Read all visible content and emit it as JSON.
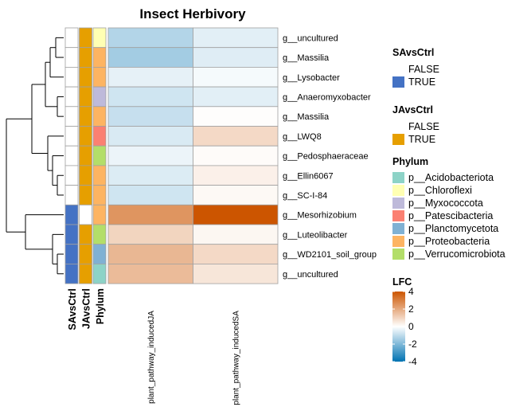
{
  "chart_data": {
    "type": "heatmap",
    "title": "Insect Herbivory",
    "columns": [
      "plant_pathway_inducedJA",
      "plant_pathway_inducedSA"
    ],
    "rows": [
      {
        "label": "g__uncultured",
        "values": [
          -1.2,
          -0.45
        ],
        "SAvsCtrl": "FALSE",
        "JAvsCtrl": "TRUE",
        "Phylum": "p__Chloroflexi"
      },
      {
        "label": "g__Massilia",
        "values": [
          -1.45,
          -0.5
        ],
        "SAvsCtrl": "FALSE",
        "JAvsCtrl": "TRUE",
        "Phylum": "p__Proteobacteria"
      },
      {
        "label": "g__Lysobacter",
        "values": [
          -0.4,
          -0.15
        ],
        "SAvsCtrl": "FALSE",
        "JAvsCtrl": "TRUE",
        "Phylum": "p__Proteobacteria"
      },
      {
        "label": "g__Anaeromyxobacter",
        "values": [
          -0.75,
          -0.45
        ],
        "SAvsCtrl": "FALSE",
        "JAvsCtrl": "TRUE",
        "Phylum": "p__Myxococcota"
      },
      {
        "label": "g__Massilia",
        "values": [
          -0.9,
          0.05
        ],
        "SAvsCtrl": "FALSE",
        "JAvsCtrl": "TRUE",
        "Phylum": "p__Proteobacteria"
      },
      {
        "label": "g__LWQ8",
        "values": [
          -0.6,
          0.9
        ],
        "SAvsCtrl": "FALSE",
        "JAvsCtrl": "TRUE",
        "Phylum": "p__Patescibacteria"
      },
      {
        "label": "g__Pedosphaeraceae",
        "values": [
          -0.3,
          0.1
        ],
        "SAvsCtrl": "FALSE",
        "JAvsCtrl": "TRUE",
        "Phylum": "p__Verrucomicrobiota"
      },
      {
        "label": "g__Ellin6067",
        "values": [
          -0.55,
          0.35
        ],
        "SAvsCtrl": "FALSE",
        "JAvsCtrl": "TRUE",
        "Phylum": "p__Proteobacteria"
      },
      {
        "label": "g__SC-I-84",
        "values": [
          -0.75,
          0.15
        ],
        "SAvsCtrl": "FALSE",
        "JAvsCtrl": "TRUE",
        "Phylum": "p__Proteobacteria"
      },
      {
        "label": "g__Mesorhizobium",
        "values": [
          2.5,
          4.0
        ],
        "SAvsCtrl": "TRUE",
        "JAvsCtrl": "FALSE",
        "Phylum": "p__Proteobacteria"
      },
      {
        "label": "g__Luteolibacter",
        "values": [
          1.0,
          0.2
        ],
        "SAvsCtrl": "TRUE",
        "JAvsCtrl": "TRUE",
        "Phylum": "p__Verrucomicrobiota"
      },
      {
        "label": "g__WD2101_soil_group",
        "values": [
          1.7,
          0.9
        ],
        "SAvsCtrl": "TRUE",
        "JAvsCtrl": "TRUE",
        "Phylum": "p__Planctomycetota"
      },
      {
        "label": "g__uncultured",
        "values": [
          1.6,
          0.6
        ],
        "SAvsCtrl": "TRUE",
        "JAvsCtrl": "TRUE",
        "Phylum": "p__Acidobacteriota"
      }
    ],
    "annotations": {
      "labels": [
        "SAvsCtrl",
        "JAvsCtrl",
        "Phylum"
      ],
      "SAvsCtrl": {
        "title": "SAvsCtrl",
        "levels": [
          {
            "label": "FALSE",
            "color": "#FFFFFF"
          },
          {
            "label": "TRUE",
            "color": "#4472C4"
          }
        ]
      },
      "JAvsCtrl": {
        "title": "JAvsCtrl",
        "levels": [
          {
            "label": "FALSE",
            "color": "#FFFFFF"
          },
          {
            "label": "TRUE",
            "color": "#E69F00"
          }
        ]
      },
      "Phylum": {
        "title": "Phylum",
        "levels": [
          {
            "label": "p__Acidobacteriota",
            "color": "#8DD3C7"
          },
          {
            "label": "p__Chloroflexi",
            "color": "#FFFFB3"
          },
          {
            "label": "p__Myxococcota",
            "color": "#BEBADA"
          },
          {
            "label": "p__Patescibacteria",
            "color": "#FB8072"
          },
          {
            "label": "p__Planctomycetota",
            "color": "#80B1D3"
          },
          {
            "label": "p__Proteobacteria",
            "color": "#FDB462"
          },
          {
            "label": "p__Verrucomicrobiota",
            "color": "#B3DE69"
          }
        ]
      }
    },
    "color_scale": {
      "title": "LFC",
      "range": [
        -4,
        4
      ],
      "ticks": [
        4,
        2,
        0,
        -2,
        -4
      ],
      "colors": [
        "#0072B2",
        "#FFFFFF",
        "#CC5500"
      ]
    },
    "dendrogram": "row clustering tree shown on the left",
    "grid": false
  }
}
